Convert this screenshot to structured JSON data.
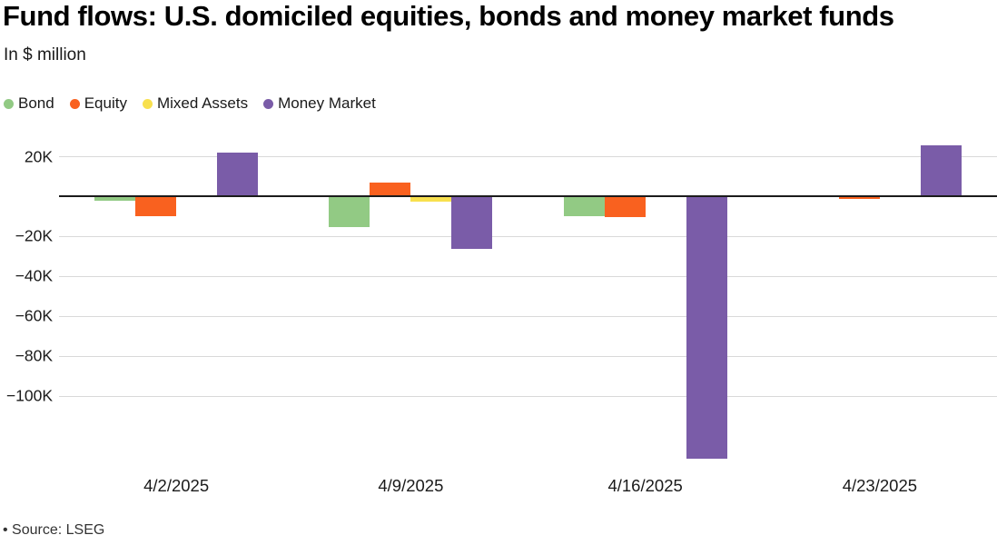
{
  "header": {
    "title": "Fund flows: U.S. domiciled equities, bonds and money market funds",
    "subtitle": "In $ million"
  },
  "footer": {
    "source": "• Source: LSEG"
  },
  "chart_data": {
    "type": "bar",
    "title": "Fund flows: U.S. domiciled equities, bonds and money market funds",
    "subtitle": "In $ million",
    "unit": "$ million",
    "categories": [
      "4/2/2025",
      "4/9/2025",
      "4/16/2025",
      "4/23/2025"
    ],
    "series": [
      {
        "name": "Bond",
        "color": "#92CA84",
        "values": [
          -2300,
          -15500,
          -10100,
          -100
        ]
      },
      {
        "name": "Equity",
        "color": "#F9611F",
        "values": [
          -9900,
          6800,
          -10500,
          -1400
        ]
      },
      {
        "name": "Mixed Assets",
        "color": "#F8E04E",
        "values": [
          -500,
          -2600,
          -100,
          400
        ]
      },
      {
        "name": "Money Market",
        "color": "#7A5CA8",
        "values": [
          22000,
          -26200,
          -131500,
          25500
        ]
      }
    ],
    "yticks": [
      {
        "value": 20000,
        "label": "20K"
      },
      {
        "value": -20000,
        "label": "−20K"
      },
      {
        "value": -40000,
        "label": "−40K"
      },
      {
        "value": -60000,
        "label": "−60K"
      },
      {
        "value": -80000,
        "label": "−80K"
      },
      {
        "value": -100000,
        "label": "−100K"
      }
    ],
    "ylim": [
      -134000,
      30000
    ],
    "grid": true,
    "zero_line": true,
    "legend_position": "top-left",
    "gridline_color": "#d9d9d9",
    "zero_line_color": "#1c1c1c"
  }
}
